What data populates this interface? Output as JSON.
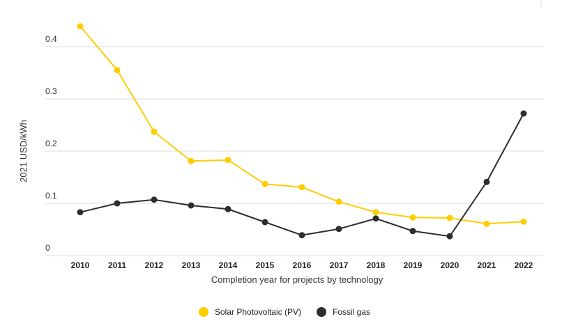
{
  "chart_data": {
    "type": "line",
    "xlabel": "Completion year for projects by technology",
    "ylabel": "2021 USD/kWh",
    "ylim": [
      0,
      0.4
    ],
    "yticks": [
      "0",
      "0.1",
      "0.2",
      "0.3",
      "0.4"
    ],
    "categories": [
      "2010",
      "2011",
      "2012",
      "2013",
      "2014",
      "2015",
      "2016",
      "2017",
      "2018",
      "2019",
      "2020",
      "2021",
      "2022"
    ],
    "grid": true,
    "legend_position": "bottom",
    "series": [
      {
        "name": "Solar Photovoltaic (PV)",
        "color": "#ffcc00",
        "values": [
          0.439,
          0.355,
          0.237,
          0.181,
          0.183,
          0.137,
          0.131,
          0.103,
          0.083,
          0.073,
          0.072,
          0.061,
          0.065
        ]
      },
      {
        "name": "Fossil gas",
        "color": "#2b2d2f",
        "values": [
          0.083,
          0.1,
          0.107,
          0.096,
          0.089,
          0.064,
          0.039,
          0.051,
          0.071,
          0.047,
          0.037,
          0.141,
          0.272
        ]
      }
    ]
  }
}
